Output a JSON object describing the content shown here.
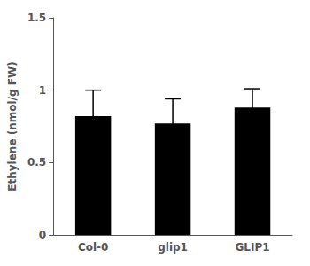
{
  "chart_data": {
    "type": "bar",
    "categories": [
      "Col-0",
      "glip1",
      "GLIP1"
    ],
    "values": [
      0.82,
      0.77,
      0.88
    ],
    "errors": [
      0.18,
      0.17,
      0.13
    ],
    "color": "#000000",
    "ylabel": "Ethylene (nmol/g FW)",
    "ylim": [
      0,
      1.5
    ],
    "yticks": [
      0,
      0.5,
      1,
      1.5
    ],
    "grid": false
  }
}
